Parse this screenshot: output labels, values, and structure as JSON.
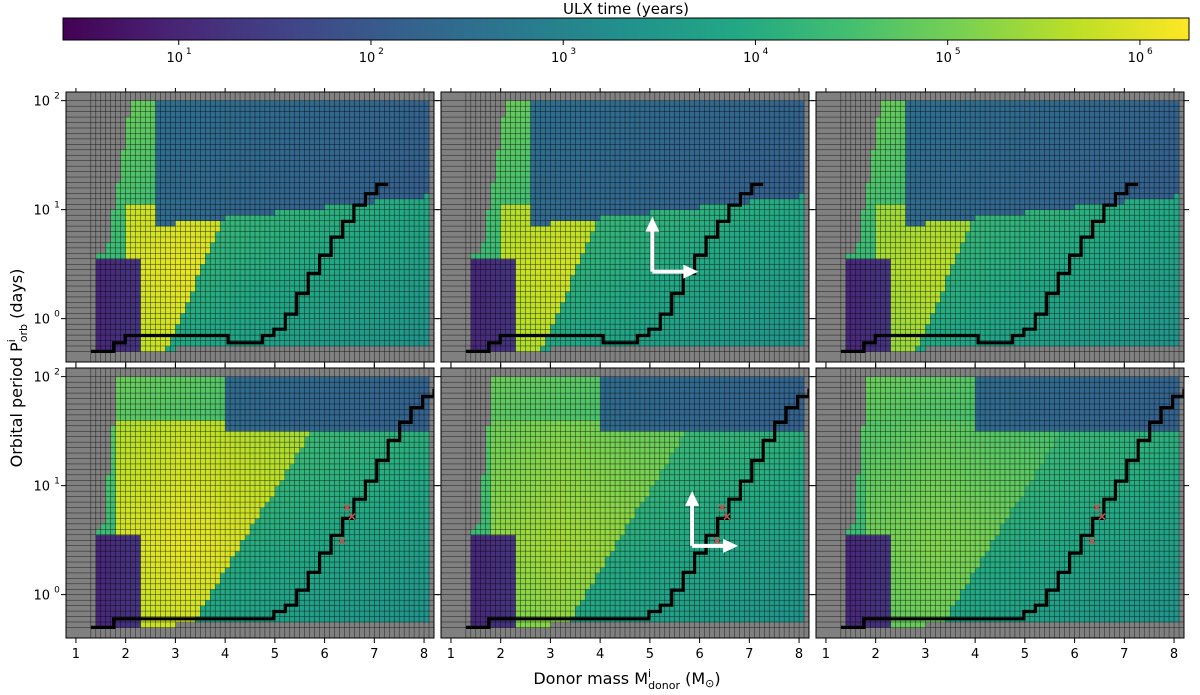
{
  "chart_data": {
    "type": "heatmap",
    "panels": 6,
    "layout": "2 rows x 3 columns, shared axes",
    "colorbar": {
      "label": "ULX time (years)",
      "scale": "log",
      "colormap": "viridis",
      "range": [
        2.5,
        1800000
      ],
      "tick_values": [
        10,
        100,
        1000,
        10000,
        100000,
        1000000
      ],
      "tick_labels": [
        "10",
        "10",
        "10",
        "10",
        "10",
        "10"
      ],
      "tick_exponents": [
        "1",
        "2",
        "3",
        "4",
        "5",
        "6"
      ]
    },
    "x": {
      "label_main": "Donor mass M",
      "label_sup": "i",
      "label_sub": "donor",
      "label_unit_open": " (M",
      "label_unit_sym": "⊙",
      "label_unit_close": ")",
      "range": [
        0.8,
        8.2
      ],
      "ticks": [
        1,
        2,
        3,
        4,
        5,
        6,
        7,
        8
      ],
      "tick_labels": [
        "1",
        "2",
        "3",
        "4",
        "5",
        "6",
        "7",
        "8"
      ]
    },
    "y": {
      "label_main": "Orbital period P",
      "label_sup": "i",
      "label_sub": "orb",
      "label_unit": " (days)",
      "scale": "log",
      "range": [
        0.4,
        120
      ],
      "ticks": [
        1,
        10,
        100
      ],
      "tick_labels": [
        "10",
        "10",
        "10"
      ],
      "tick_exponents": [
        "0",
        "1",
        "2"
      ]
    },
    "grid": "cell mesh, donor mass step 0.1 Msun, log period step 0.05 dex",
    "no_ulx_color": "#808080",
    "panel_values": [
      {
        "row": 0,
        "col": 0,
        "max_log10_years": 6.2,
        "boundary_period_days": [
          0.5,
          0.5,
          0.6,
          0.7,
          0.7,
          0.7,
          0.7,
          0.7,
          0.7,
          0.7,
          0.7,
          0.7,
          0.6,
          0.6,
          0.6,
          0.7,
          0.8,
          1.1,
          1.7,
          2.6,
          3.8,
          5.6,
          7.8,
          11.0,
          14.0,
          17.0
        ]
      },
      {
        "row": 0,
        "col": 1,
        "max_log10_years": 6.0,
        "boundary_period_days": [
          0.5,
          0.5,
          0.6,
          0.7,
          0.7,
          0.7,
          0.7,
          0.7,
          0.7,
          0.7,
          0.7,
          0.7,
          0.6,
          0.6,
          0.6,
          0.7,
          0.8,
          1.1,
          1.7,
          2.6,
          3.8,
          5.6,
          7.8,
          11.0,
          14.0,
          17.0
        ]
      },
      {
        "row": 0,
        "col": 2,
        "max_log10_years": 5.8,
        "boundary_period_days": [
          0.5,
          0.5,
          0.6,
          0.7,
          0.7,
          0.7,
          0.7,
          0.7,
          0.7,
          0.7,
          0.7,
          0.7,
          0.6,
          0.6,
          0.6,
          0.7,
          0.8,
          1.1,
          1.7,
          2.6,
          3.8,
          5.6,
          7.8,
          11.0,
          14.0,
          17.0
        ]
      },
      {
        "row": 1,
        "col": 0,
        "max_log10_years": 6.2,
        "boundary_period_days": [
          0.5,
          0.5,
          0.6,
          0.6,
          0.6,
          0.6,
          0.6,
          0.6,
          0.6,
          0.6,
          0.6,
          0.6,
          0.6,
          0.6,
          0.6,
          0.6,
          0.7,
          0.8,
          1.1,
          1.6,
          2.4,
          3.5,
          5.0,
          7.5,
          11,
          17,
          26,
          38,
          52,
          66,
          75
        ]
      },
      {
        "row": 1,
        "col": 1,
        "max_log10_years": 5.6,
        "boundary_period_days": [
          0.5,
          0.5,
          0.6,
          0.6,
          0.6,
          0.6,
          0.6,
          0.6,
          0.6,
          0.6,
          0.6,
          0.6,
          0.6,
          0.6,
          0.6,
          0.6,
          0.7,
          0.8,
          1.1,
          1.6,
          2.4,
          3.5,
          5.0,
          7.5,
          11,
          17,
          26,
          38,
          52,
          66,
          75
        ]
      },
      {
        "row": 1,
        "col": 2,
        "max_log10_years": 5.3,
        "boundary_period_days": [
          0.5,
          0.5,
          0.6,
          0.6,
          0.6,
          0.6,
          0.6,
          0.6,
          0.6,
          0.6,
          0.6,
          0.6,
          0.6,
          0.6,
          0.6,
          0.6,
          0.7,
          0.8,
          1.1,
          1.6,
          2.4,
          3.5,
          5.0,
          7.5,
          11,
          17,
          26,
          38,
          52,
          66,
          75
        ]
      }
    ],
    "markers": {
      "shape": "x",
      "color": "#c0504d",
      "panels": [
        [
          1,
          0
        ],
        [
          1,
          1
        ],
        [
          1,
          2
        ]
      ],
      "points": [
        {
          "x": 6.45,
          "y": 6.3
        },
        {
          "x": 6.55,
          "y": 5.2
        },
        {
          "x": 6.35,
          "y": 3.1
        }
      ]
    },
    "annotation_arrows": {
      "color": "#ffffff",
      "panels": [
        [
          0,
          1
        ],
        [
          1,
          1
        ]
      ],
      "note": "white up and right arrows"
    },
    "legend": "none"
  }
}
